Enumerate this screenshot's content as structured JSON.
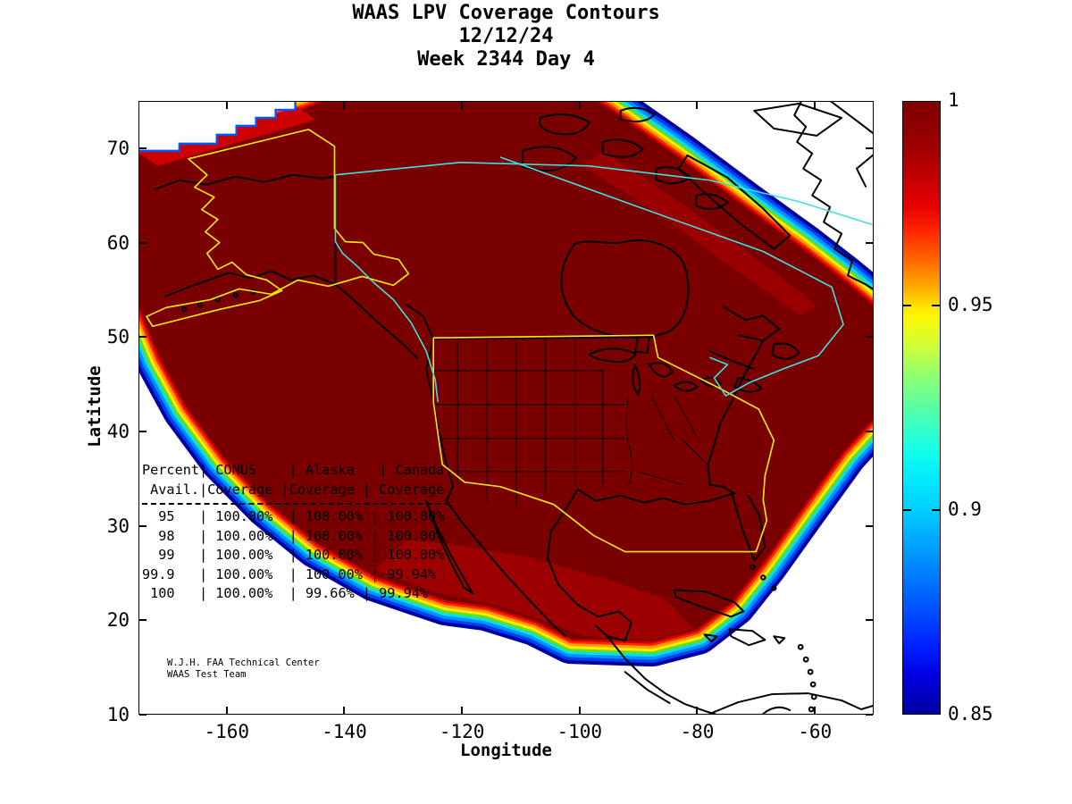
{
  "figure": {
    "title_lines": [
      "WAAS LPV Coverage Contours",
      "12/12/24",
      "Week 2344 Day 4"
    ]
  },
  "axes": {
    "xlabel": "Longitude",
    "ylabel": "Latitude",
    "xtick_labels": [
      "-160",
      "-140",
      "-120",
      "-100",
      "-80",
      "-60"
    ],
    "ytick_labels": [
      "70",
      "60",
      "50",
      "40",
      "30",
      "20",
      "10"
    ]
  },
  "colorbar": {
    "tick_labels": [
      "1",
      "0.95",
      "0.9",
      "0.85"
    ],
    "top_color": "#7f0000",
    "bottom_color": "#0000a0"
  },
  "overlay_table": {
    "lines": [
      "Percent| CONUS    | Alaska   | Canada",
      " Avail.|Coverage |Coverage | Coverage",
      "  95   | 100.00%  | 100.00% | 100.00%",
      "  98   | 100.00%  | 100.00% | 100.00%",
      "  99   | 100.00%  | 100.00% | 100.00%",
      "99.9   | 100.00%  | 100.00% | 99.94%",
      " 100   | 100.00%  | 99.66% | 99.94%"
    ]
  },
  "credit_lines": [
    "W.J.H. FAA Technical Center",
    "WAAS Test Team"
  ],
  "map_colors": {
    "core_coverage": "#7a0000",
    "service_boundary_yellow": "#ffee00",
    "service_boundary_cyan": "#40e0e0",
    "coastline": "#000000"
  },
  "chart_data": {
    "type": "heatmap",
    "subtype": "filled-contour-coverage-map",
    "title": "WAAS LPV Coverage Contours",
    "date": "12/12/24",
    "gps_week": "Week 2344 Day 4",
    "xlabel": "Longitude",
    "ylabel": "Latitude",
    "xlim": [
      -175,
      -50
    ],
    "ylim": [
      10,
      75
    ],
    "xticks": [
      -160,
      -140,
      -120,
      -100,
      -80,
      -60
    ],
    "yticks": [
      70,
      60,
      50,
      40,
      30,
      20,
      10
    ],
    "grid": false,
    "colorbar": {
      "range": [
        0.85,
        1
      ],
      "tick_values": [
        1,
        0.95,
        0.9,
        0.85
      ],
      "colormap": "jet",
      "orientation": "vertical",
      "position": "right"
    },
    "region": "North America (Alaska, Canada, CONUS, Mexico, Caribbean)",
    "availability_table": {
      "columns": [
        "Percent Avail.",
        "CONUS Coverage",
        "Alaska Coverage",
        "Canada Coverage"
      ],
      "rows": [
        [
          "95",
          "100.00%",
          "100.00%",
          "100.00%"
        ],
        [
          "98",
          "100.00%",
          "100.00%",
          "100.00%"
        ],
        [
          "99",
          "100.00%",
          "100.00%",
          "100.00%"
        ],
        [
          "99.9",
          "100.00%",
          "100.00%",
          "99.94%"
        ],
        [
          "100",
          "100.00%",
          "99.66%",
          "99.94%"
        ]
      ]
    },
    "credit": [
      "W.J.H. FAA Technical Center",
      "WAAS Test Team"
    ]
  }
}
